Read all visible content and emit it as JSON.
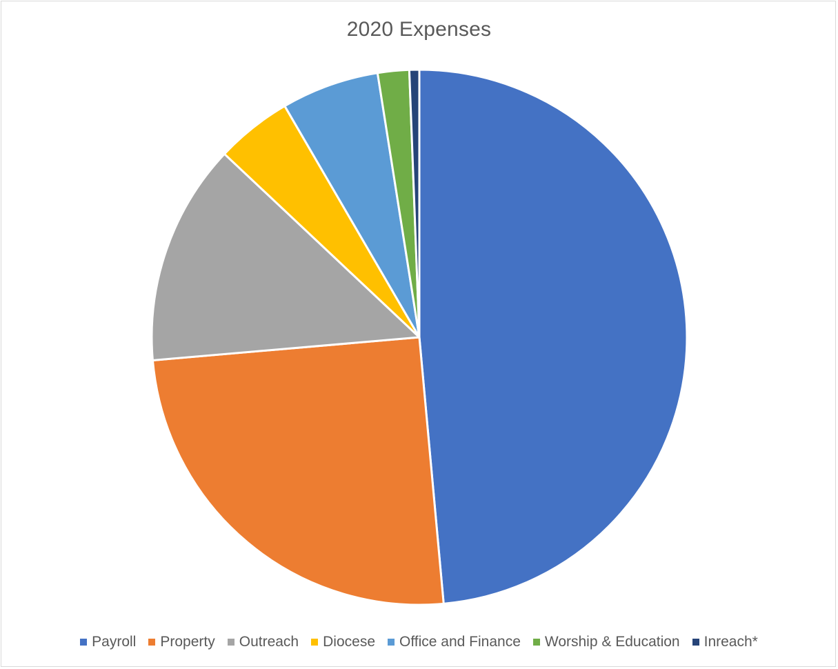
{
  "chart_data": {
    "type": "pie",
    "title": "2020 Expenses",
    "categories": [
      "Payroll",
      "Property",
      "Outreach",
      "Diocese",
      "Office and Finance",
      "Worship & Education",
      "Inreach*"
    ],
    "values": [
      48.6,
      25.1,
      13.4,
      4.6,
      5.9,
      1.9,
      0.6
    ],
    "unit": "percent (estimated)",
    "colors": [
      "#4472C4",
      "#ED7D31",
      "#A5A5A5",
      "#FFC000",
      "#5B9BD5",
      "#70AD47",
      "#264478"
    ],
    "start_angle": "12 o'clock",
    "direction": "clockwise",
    "legend": "bottom",
    "data_labels": false
  }
}
